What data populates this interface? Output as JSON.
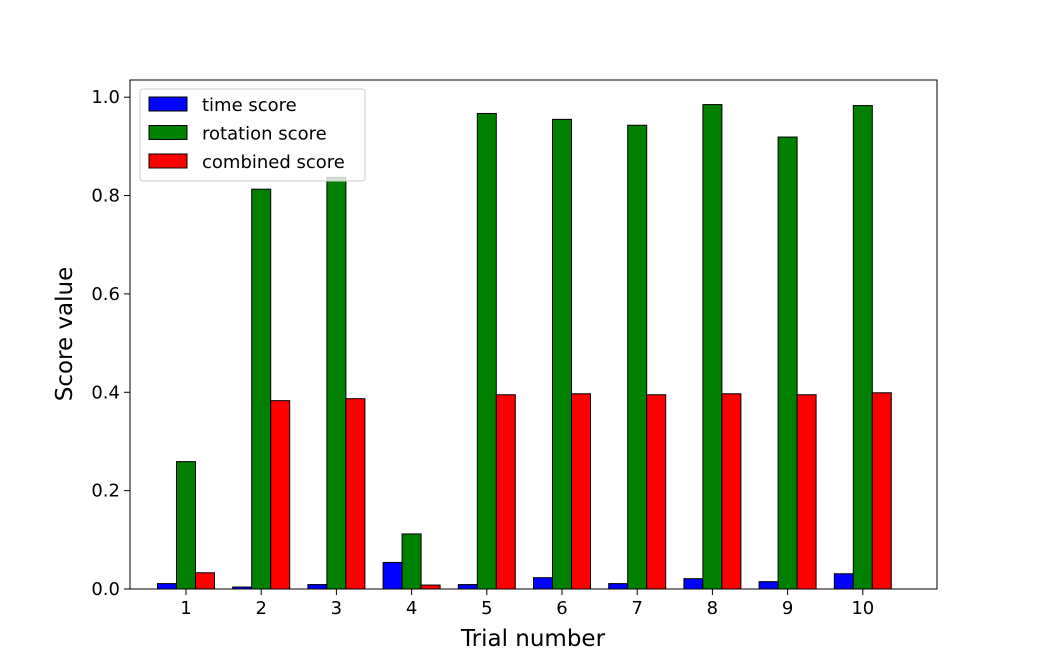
{
  "chart_data": {
    "type": "bar",
    "title": "",
    "xlabel": "Trial number",
    "ylabel": "Score value",
    "categories": [
      "1",
      "2",
      "3",
      "4",
      "5",
      "6",
      "7",
      "8",
      "9",
      "10"
    ],
    "series": [
      {
        "name": "time score",
        "color": "#0000ff",
        "values": [
          0.011,
          0.004,
          0.009,
          0.054,
          0.009,
          0.023,
          0.011,
          0.021,
          0.015,
          0.031
        ]
      },
      {
        "name": "rotation score",
        "color": "#008000",
        "values": [
          0.259,
          0.813,
          0.837,
          0.112,
          0.967,
          0.955,
          0.943,
          0.985,
          0.919,
          0.983
        ]
      },
      {
        "name": "combined score",
        "color": "#ff0000",
        "values": [
          0.033,
          0.383,
          0.387,
          0.008,
          0.395,
          0.397,
          0.395,
          0.397,
          0.395,
          0.399
        ]
      }
    ],
    "ylim": [
      0,
      1.035
    ],
    "yticks": [
      0.0,
      0.2,
      0.4,
      0.6,
      0.8,
      1.0
    ],
    "ytick_labels": [
      "0.0",
      "0.2",
      "0.4",
      "0.6",
      "0.8",
      "1.0"
    ],
    "grid": false,
    "legend_position": "top-left"
  }
}
